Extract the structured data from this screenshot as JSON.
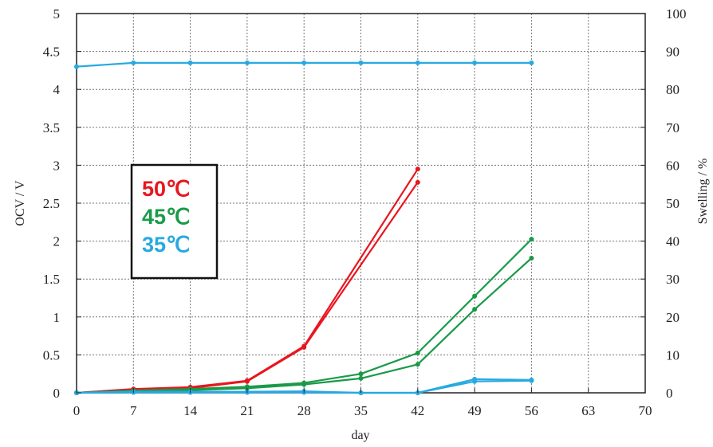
{
  "chart_data": {
    "type": "line",
    "title": "",
    "xlabel": "day",
    "ylabel_left": "OCV / V",
    "ylabel_right": "Swelling / %",
    "xlim": [
      0,
      70
    ],
    "ylim_left": [
      0,
      5
    ],
    "ylim_right": [
      0,
      100
    ],
    "x_ticks": [
      "0",
      "7",
      "14",
      "21",
      "28",
      "35",
      "42",
      "49",
      "56",
      "63",
      "70"
    ],
    "y_left_ticks": [
      "0",
      "0.5",
      "1",
      "1.5",
      "2",
      "2.5",
      "3",
      "3.5",
      "4",
      "4.5",
      "5"
    ],
    "y_right_ticks": [
      "0",
      "10",
      "20",
      "30",
      "40",
      "50",
      "60",
      "70",
      "80",
      "90",
      "100"
    ],
    "grid": true,
    "legend": {
      "placement": "center-left",
      "entries": [
        {
          "label": "50℃",
          "color": "#e8161e"
        },
        {
          "label": "45℃",
          "color": "#1a9a48"
        },
        {
          "label": "35℃",
          "color": "#27a9e1"
        }
      ]
    },
    "series": [
      {
        "color": "#27a9e1",
        "axis": "left",
        "x": [
          0,
          7,
          14,
          21,
          28,
          35,
          42,
          49,
          56
        ],
        "y": [
          4.3,
          4.35,
          4.35,
          4.35,
          4.35,
          4.35,
          4.35,
          4.35,
          4.35
        ]
      },
      {
        "color": "#e8161e",
        "axis": "right",
        "x": [
          0,
          7,
          14,
          21,
          28,
          42
        ],
        "y": [
          0,
          1,
          1.5,
          3.2,
          12.3,
          59
        ]
      },
      {
        "color": "#e8161e",
        "axis": "right",
        "x": [
          0,
          7,
          14,
          21,
          28,
          42
        ],
        "y": [
          0,
          0.8,
          1.2,
          3,
          12,
          55.5
        ]
      },
      {
        "color": "#1a9a48",
        "axis": "right",
        "x": [
          0,
          7,
          14,
          21,
          28,
          35,
          42,
          49,
          56
        ],
        "y": [
          0,
          0.6,
          1,
          1.6,
          2.6,
          5,
          10.5,
          25.5,
          40.5
        ]
      },
      {
        "color": "#1a9a48",
        "axis": "right",
        "x": [
          0,
          7,
          14,
          21,
          28,
          35,
          42,
          49,
          56
        ],
        "y": [
          0,
          0.4,
          0.7,
          1.2,
          2.2,
          3.8,
          7.5,
          22,
          35.5
        ]
      },
      {
        "color": "#27a9e1",
        "axis": "right",
        "x": [
          0,
          7,
          14,
          21,
          28,
          35,
          42,
          49,
          56
        ],
        "y": [
          0,
          0.3,
          0.3,
          0.3,
          0.4,
          0,
          0,
          3.6,
          3.4
        ]
      },
      {
        "color": "#27a9e1",
        "axis": "right",
        "x": [
          0,
          7,
          14,
          21,
          28,
          35,
          42,
          49,
          56
        ],
        "y": [
          0,
          0.1,
          0.1,
          0.1,
          0.1,
          0,
          0,
          3,
          3.2
        ]
      }
    ]
  }
}
